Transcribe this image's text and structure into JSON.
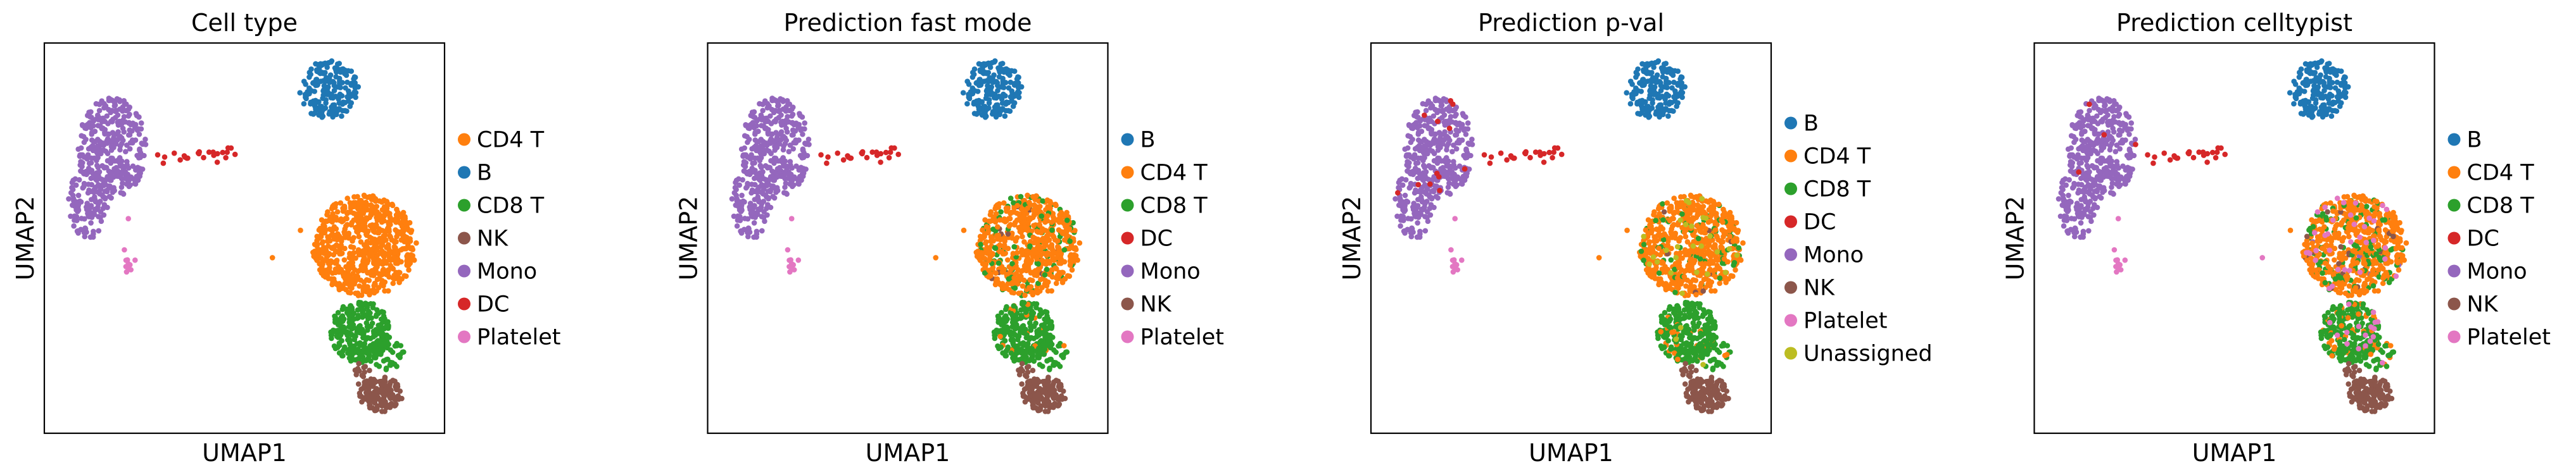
{
  "chart_data": [
    {
      "type": "scatter",
      "title": "Cell type",
      "xlabel": "UMAP1",
      "ylabel": "UMAP2",
      "grid": false,
      "legend": "right",
      "legend_entries": [
        {
          "label": "CD4 T",
          "color": "#ff7f0e"
        },
        {
          "label": "B",
          "color": "#1f77b4"
        },
        {
          "label": "CD8 T",
          "color": "#2ca02c"
        },
        {
          "label": "NK",
          "color": "#8c564b"
        },
        {
          "label": "Mono",
          "color": "#9467bd"
        },
        {
          "label": "DC",
          "color": "#d62728"
        },
        {
          "label": "Platelet",
          "color": "#e377c2"
        }
      ]
    },
    {
      "type": "scatter",
      "title": "Prediction fast mode",
      "xlabel": "UMAP1",
      "ylabel": "UMAP2",
      "grid": false,
      "legend": "right",
      "legend_entries": [
        {
          "label": "B",
          "color": "#1f77b4"
        },
        {
          "label": "CD4 T",
          "color": "#ff7f0e"
        },
        {
          "label": "CD8 T",
          "color": "#2ca02c"
        },
        {
          "label": "DC",
          "color": "#d62728"
        },
        {
          "label": "Mono",
          "color": "#9467bd"
        },
        {
          "label": "NK",
          "color": "#8c564b"
        },
        {
          "label": "Platelet",
          "color": "#e377c2"
        }
      ]
    },
    {
      "type": "scatter",
      "title": "Prediction p-val",
      "xlabel": "UMAP1",
      "ylabel": "UMAP2",
      "grid": false,
      "legend": "right",
      "legend_entries": [
        {
          "label": "B",
          "color": "#1f77b4"
        },
        {
          "label": "CD4 T",
          "color": "#ff7f0e"
        },
        {
          "label": "CD8 T",
          "color": "#2ca02c"
        },
        {
          "label": "DC",
          "color": "#d62728"
        },
        {
          "label": "Mono",
          "color": "#9467bd"
        },
        {
          "label": "NK",
          "color": "#8c564b"
        },
        {
          "label": "Platelet",
          "color": "#e377c2"
        },
        {
          "label": "Unassigned",
          "color": "#bcbd22"
        }
      ]
    },
    {
      "type": "scatter",
      "title": "Prediction celltypist",
      "xlabel": "UMAP1",
      "ylabel": "UMAP2",
      "grid": false,
      "legend": "right",
      "legend_entries": [
        {
          "label": "B",
          "color": "#1f77b4"
        },
        {
          "label": "CD4 T",
          "color": "#ff7f0e"
        },
        {
          "label": "CD8 T",
          "color": "#2ca02c"
        },
        {
          "label": "DC",
          "color": "#d62728"
        },
        {
          "label": "Mono",
          "color": "#9467bd"
        },
        {
          "label": "NK",
          "color": "#8c564b"
        },
        {
          "label": "Platelet",
          "color": "#e377c2"
        }
      ]
    }
  ]
}
